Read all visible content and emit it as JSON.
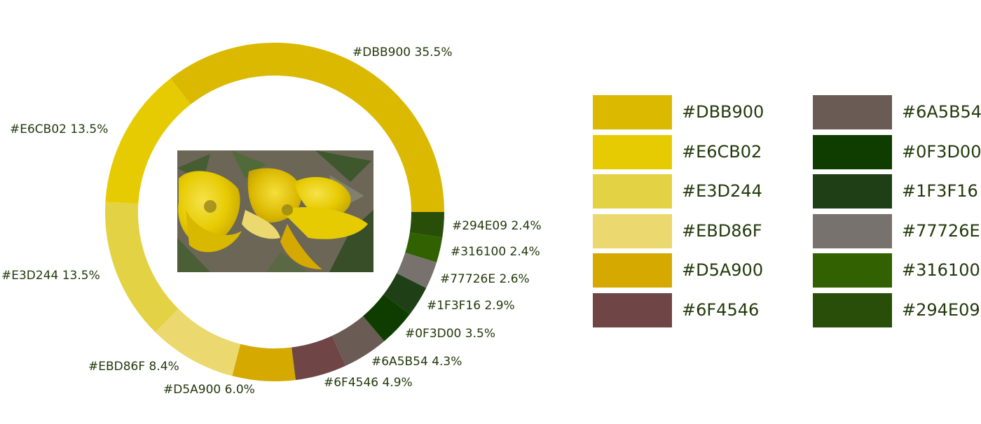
{
  "chart_data": {
    "type": "pie",
    "variant": "donut",
    "center_image": "yellow-flower-photo",
    "slices": [
      {
        "label": "#DBB900 35.5%",
        "color": "#DBB900",
        "value": 35.5
      },
      {
        "label": "#E6CB02 13.5%",
        "color": "#E6CB02",
        "value": 13.5
      },
      {
        "label": "#E3D244 13.5%",
        "color": "#E3D244",
        "value": 13.5
      },
      {
        "label": "#EBD86F 8.4%",
        "color": "#EBD86F",
        "value": 8.4
      },
      {
        "label": "#D5A900 6.0%",
        "color": "#D5A900",
        "value": 6.0
      },
      {
        "label": "#6F4546 4.9%",
        "color": "#6F4546",
        "value": 4.9
      },
      {
        "label": "#6A5B54 4.3%",
        "color": "#6A5B54",
        "value": 4.3
      },
      {
        "label": "#0F3D00 3.5%",
        "color": "#0F3D00",
        "value": 3.5
      },
      {
        "label": "#1F3F16 2.9%",
        "color": "#1F3F16",
        "value": 2.9
      },
      {
        "label": "#77726E 2.6%",
        "color": "#77726E",
        "value": 2.6
      },
      {
        "label": "#316100 2.4%",
        "color": "#316100",
        "value": 2.4
      },
      {
        "label": "#294E09 2.4%",
        "color": "#294E09",
        "value": 2.4
      }
    ]
  },
  "palette_legend": {
    "columns": [
      [
        {
          "label": "#DBB900",
          "color": "#DBB900"
        },
        {
          "label": "#E6CB02",
          "color": "#E6CB02"
        },
        {
          "label": "#E3D244",
          "color": "#E3D244"
        },
        {
          "label": "#EBD86F",
          "color": "#EBD86F"
        },
        {
          "label": "#D5A900",
          "color": "#D5A900"
        },
        {
          "label": "#6F4546",
          "color": "#6F4546"
        }
      ],
      [
        {
          "label": "#6A5B54",
          "color": "#6A5B54"
        },
        {
          "label": "#0F3D00",
          "color": "#0F3D00"
        },
        {
          "label": "#1F3F16",
          "color": "#1F3F16"
        },
        {
          "label": "#77726E",
          "color": "#77726E"
        },
        {
          "label": "#316100",
          "color": "#316100"
        },
        {
          "label": "#294E09",
          "color": "#294E09"
        }
      ]
    ]
  }
}
